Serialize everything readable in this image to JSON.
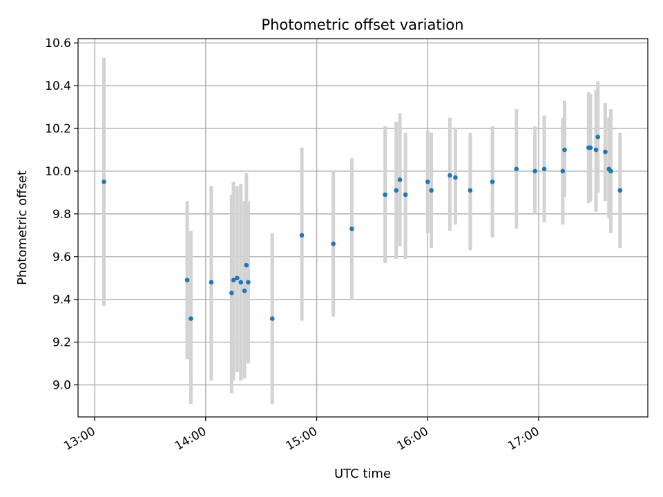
{
  "chart_data": {
    "type": "scatter",
    "title": "Photometric offset variation",
    "xlabel": "UTC time",
    "ylabel": "Photometric offset",
    "x_ticks": [
      "13:00",
      "14:00",
      "15:00",
      "16:00",
      "17:00"
    ],
    "y_ticks": [
      "9.0",
      "9.2",
      "9.4",
      "9.6",
      "9.8",
      "10.0",
      "10.2",
      "10.4",
      "10.6"
    ],
    "xlim": [
      "12:51",
      "17:59"
    ],
    "ylim": [
      8.85,
      10.62
    ],
    "grid": true,
    "colors": {
      "points": "#1f77b4",
      "error_bars": "#d3d3d3",
      "grid": "#b0b0b0"
    },
    "points": [
      {
        "x": "13:05",
        "y": 9.95,
        "low": 9.37,
        "high": 10.53
      },
      {
        "x": "13:50",
        "y": 9.49,
        "low": 9.12,
        "high": 9.86
      },
      {
        "x": "13:52",
        "y": 9.31,
        "low": 8.91,
        "high": 9.72
      },
      {
        "x": "14:03",
        "y": 9.48,
        "low": 9.02,
        "high": 9.93
      },
      {
        "x": "14:14",
        "y": 9.43,
        "low": 8.96,
        "high": 9.89
      },
      {
        "x": "14:15",
        "y": 9.49,
        "low": 9.02,
        "high": 9.95
      },
      {
        "x": "14:17",
        "y": 9.5,
        "low": 9.06,
        "high": 9.93
      },
      {
        "x": "14:19",
        "y": 9.48,
        "low": 9.02,
        "high": 9.94
      },
      {
        "x": "14:21",
        "y": 9.44,
        "low": 9.03,
        "high": 9.86
      },
      {
        "x": "14:22",
        "y": 9.56,
        "low": 9.12,
        "high": 9.99
      },
      {
        "x": "14:23",
        "y": 9.48,
        "low": 9.1,
        "high": 9.86
      },
      {
        "x": "14:36",
        "y": 9.31,
        "low": 8.91,
        "high": 9.71
      },
      {
        "x": "14:52",
        "y": 9.7,
        "low": 9.3,
        "high": 10.11
      },
      {
        "x": "15:09",
        "y": 9.66,
        "low": 9.32,
        "high": 10.0
      },
      {
        "x": "15:19",
        "y": 9.73,
        "low": 9.4,
        "high": 10.06
      },
      {
        "x": "15:37",
        "y": 9.89,
        "low": 9.57,
        "high": 10.21
      },
      {
        "x": "15:43",
        "y": 9.91,
        "low": 9.59,
        "high": 10.23
      },
      {
        "x": "15:45",
        "y": 9.96,
        "low": 9.65,
        "high": 10.27
      },
      {
        "x": "15:48",
        "y": 9.89,
        "low": 9.59,
        "high": 10.18
      },
      {
        "x": "16:00",
        "y": 9.95,
        "low": 9.71,
        "high": 10.19
      },
      {
        "x": "16:02",
        "y": 9.91,
        "low": 9.64,
        "high": 10.18
      },
      {
        "x": "16:12",
        "y": 9.98,
        "low": 9.72,
        "high": 10.25
      },
      {
        "x": "16:15",
        "y": 9.97,
        "low": 9.75,
        "high": 10.2
      },
      {
        "x": "16:23",
        "y": 9.91,
        "low": 9.63,
        "high": 10.18
      },
      {
        "x": "16:35",
        "y": 9.95,
        "low": 9.69,
        "high": 10.21
      },
      {
        "x": "16:48",
        "y": 10.01,
        "low": 9.73,
        "high": 10.29
      },
      {
        "x": "16:58",
        "y": 10.0,
        "low": 9.8,
        "high": 10.21
      },
      {
        "x": "17:03",
        "y": 10.01,
        "low": 9.76,
        "high": 10.26
      },
      {
        "x": "17:13",
        "y": 10.0,
        "low": 9.75,
        "high": 10.25
      },
      {
        "x": "17:14",
        "y": 10.1,
        "low": 9.88,
        "high": 10.33
      },
      {
        "x": "17:27",
        "y": 10.11,
        "low": 9.85,
        "high": 10.37
      },
      {
        "x": "17:28",
        "y": 10.11,
        "low": 9.86,
        "high": 10.36
      },
      {
        "x": "17:31",
        "y": 10.1,
        "low": 9.81,
        "high": 10.38
      },
      {
        "x": "17:32",
        "y": 10.16,
        "low": 9.9,
        "high": 10.42
      },
      {
        "x": "17:36",
        "y": 10.09,
        "low": 9.86,
        "high": 10.32
      },
      {
        "x": "17:38",
        "y": 10.01,
        "low": 9.78,
        "high": 10.25
      },
      {
        "x": "17:39",
        "y": 10.0,
        "low": 9.71,
        "high": 10.29
      },
      {
        "x": "17:44",
        "y": 9.91,
        "low": 9.64,
        "high": 10.18
      }
    ]
  }
}
